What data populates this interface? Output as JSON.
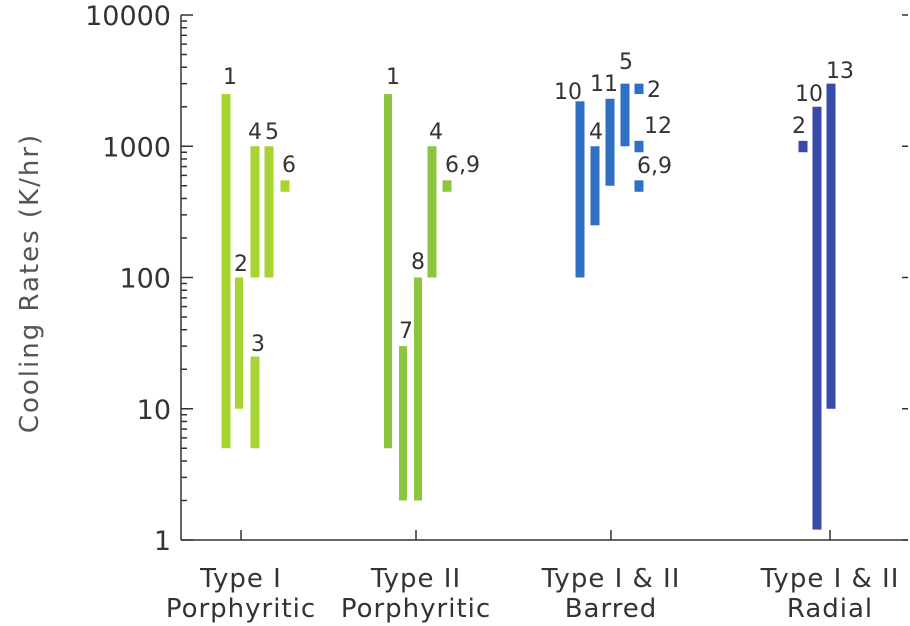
{
  "chart_data": {
    "type": "bar",
    "subtype": "floating-range",
    "title": "",
    "ylabel": "Cooling Rates (K/hr)",
    "yscale": "log",
    "ylim": [
      1,
      10000
    ],
    "yticks": [
      {
        "value": 1,
        "label": "1"
      },
      {
        "value": 10,
        "label": "10"
      },
      {
        "value": 100,
        "label": "100"
      },
      {
        "value": 1000,
        "label": "1000"
      },
      {
        "value": 10000,
        "label": "10000"
      }
    ],
    "categories": [
      {
        "line1": "Type I",
        "line2": "Porphyritic"
      },
      {
        "line1": "Type II",
        "line2": "Porphyritic"
      },
      {
        "line1": "Type I & II",
        "line2": "Barred"
      },
      {
        "line1": "Type I & II",
        "line2": "Radial"
      }
    ],
    "colors": {
      "type_i_porphyritic": "#a8d432",
      "type_ii_porphyritic": "#8cc63f",
      "barred": "#2f6fc4",
      "radial": "#3a4aa8"
    },
    "series": [
      {
        "category": 0,
        "label": "1",
        "low": 5,
        "high": 2500
      },
      {
        "category": 0,
        "label": "2",
        "low": 10,
        "high": 100
      },
      {
        "category": 0,
        "label": "3",
        "low": 5,
        "high": 25
      },
      {
        "category": 0,
        "label": "4",
        "low": 100,
        "high": 1000
      },
      {
        "category": 0,
        "label": "5",
        "low": 100,
        "high": 1000
      },
      {
        "category": 0,
        "label": "6",
        "low": 450,
        "high": 550
      },
      {
        "category": 1,
        "label": "1",
        "low": 5,
        "high": 2500
      },
      {
        "category": 1,
        "label": "7",
        "low": 2,
        "high": 30
      },
      {
        "category": 1,
        "label": "8",
        "low": 2,
        "high": 100
      },
      {
        "category": 1,
        "label": "4",
        "low": 100,
        "high": 1000
      },
      {
        "category": 1,
        "label": "6,9",
        "low": 450,
        "high": 550
      },
      {
        "category": 2,
        "label": "10",
        "low": 100,
        "high": 2200
      },
      {
        "category": 2,
        "label": "4",
        "low": 250,
        "high": 1000
      },
      {
        "category": 2,
        "label": "11",
        "low": 500,
        "high": 2300
      },
      {
        "category": 2,
        "label": "5",
        "low": 1000,
        "high": 3000
      },
      {
        "category": 2,
        "label": "2",
        "low": 2500,
        "high": 3000
      },
      {
        "category": 2,
        "label": "12",
        "low": 900,
        "high": 1100
      },
      {
        "category": 2,
        "label": "6,9",
        "low": 450,
        "high": 550
      },
      {
        "category": 3,
        "label": "2",
        "low": 900,
        "high": 1100
      },
      {
        "category": 3,
        "label": "10",
        "low": 1.2,
        "high": 2000
      },
      {
        "category": 3,
        "label": "13",
        "low": 10,
        "high": 3000
      }
    ]
  }
}
